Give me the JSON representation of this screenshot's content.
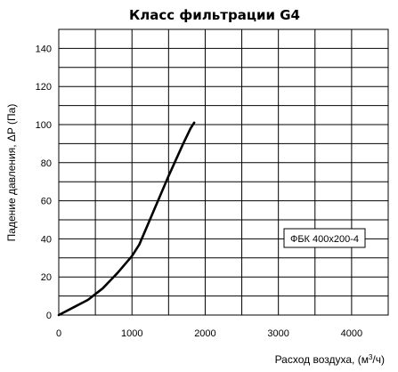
{
  "chart_data": {
    "type": "line",
    "title": "Класс фильтрации G4",
    "xlabel_prefix": "Расход воздуха, (м",
    "xlabel_sup": "3",
    "xlabel_suffix": "/ч)",
    "ylabel": "Падение давления, ΔP (Па)",
    "xlim": [
      0,
      4500
    ],
    "ylim": [
      0,
      150
    ],
    "x_ticks": [
      0,
      1000,
      2000,
      3000,
      4000
    ],
    "y_ticks": [
      0,
      20,
      40,
      60,
      80,
      100,
      120,
      140
    ],
    "x_grid_step": 500,
    "y_grid_step": 10,
    "grid": true,
    "series": [
      {
        "name": "ФБК 400x200-4",
        "x": [
          0,
          200,
          400,
          500,
          600,
          700,
          800,
          900,
          1000,
          1100,
          1200,
          1300,
          1400,
          1500,
          1600,
          1700,
          1800,
          1850
        ],
        "y": [
          0,
          4,
          8,
          11,
          14,
          18,
          22,
          26.5,
          31,
          37,
          46,
          55,
          64,
          73,
          81.5,
          90,
          98,
          101
        ]
      }
    ],
    "legend_placement": "right-center",
    "colors": {
      "line": "#000000",
      "grid": "#000000",
      "background": "#ffffff"
    }
  }
}
